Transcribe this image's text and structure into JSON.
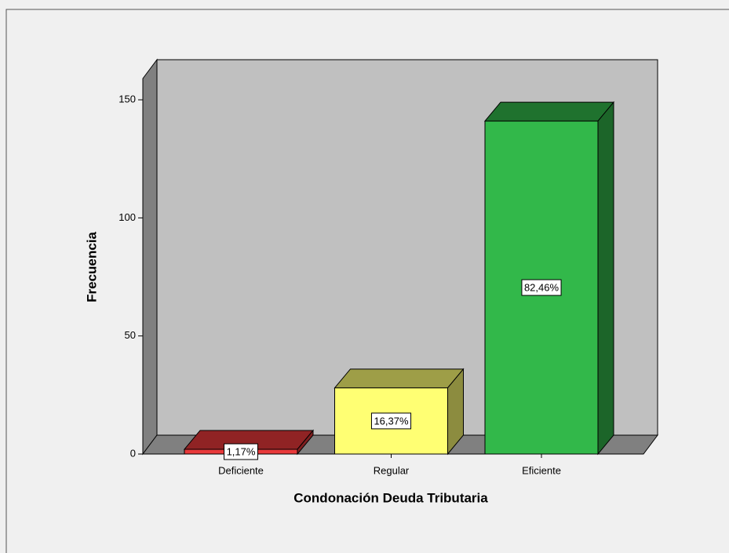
{
  "chart_data": {
    "type": "bar3d",
    "categories": [
      "Deficiente",
      "Regular",
      "Eficiente"
    ],
    "values": [
      2,
      28,
      141
    ],
    "percentages": [
      1.17,
      16.37,
      82.46
    ],
    "percentage_labels": [
      "1,17%",
      "16,37%",
      "82,46%"
    ],
    "colors": [
      "#e8393a",
      "#ffff73",
      "#32b84a"
    ],
    "ylabel": "Frecuencia",
    "xlabel": "Condonación Deuda Tributaria",
    "ylim": [
      0,
      159
    ],
    "yticks": [
      0,
      50,
      100,
      150
    ]
  }
}
